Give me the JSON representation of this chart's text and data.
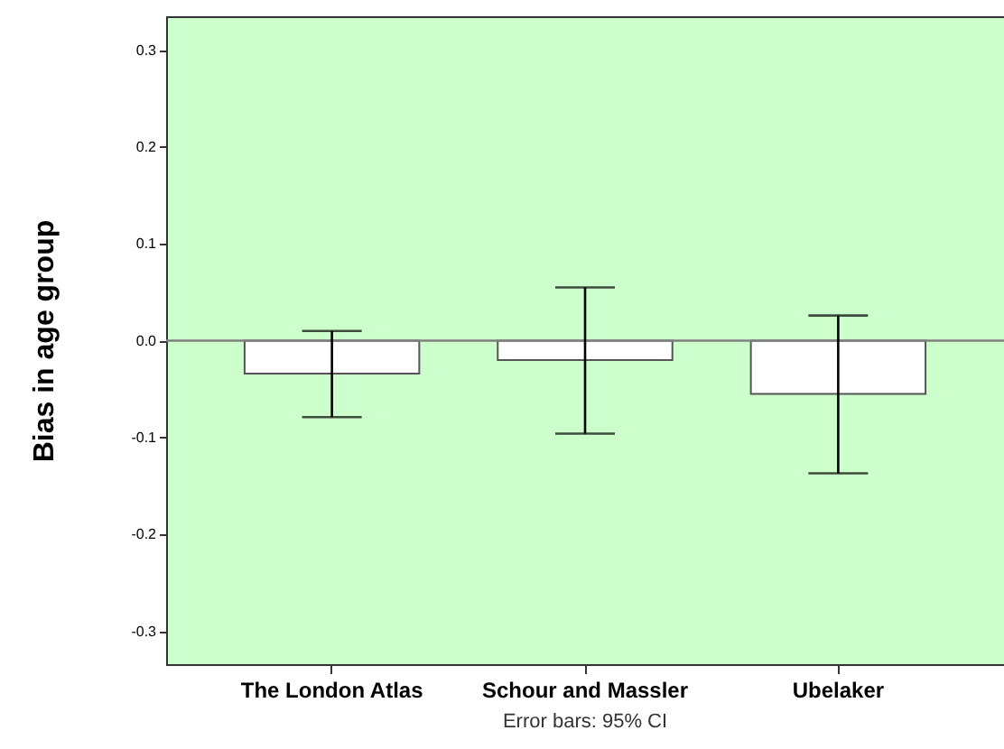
{
  "chart_data": {
    "type": "bar",
    "ylabel": "Bias in age group",
    "categories": [
      "The London Atlas",
      "Schour and Massler",
      "Ubelaker"
    ],
    "values": [
      -0.034,
      -0.02,
      -0.055
    ],
    "errors": [
      [
        -0.079,
        0.01
      ],
      [
        -0.096,
        0.055
      ],
      [
        -0.137,
        0.026
      ]
    ],
    "color": "#ffffff",
    "ylim": [
      -0.334,
      0.335
    ],
    "yticks": [
      {
        "value": -0.3,
        "label": "-0.3"
      },
      {
        "value": -0.2,
        "label": "-0.2"
      },
      {
        "value": -0.1,
        "label": "-0.1"
      },
      {
        "value": 0,
        "label": "0.0"
      },
      {
        "value": 0.1,
        "label": "0.1"
      },
      {
        "value": 0.2,
        "label": "0.2"
      },
      {
        "value": 0.3,
        "label": "0.3"
      }
    ],
    "ref_lines": [
      {
        "axis": "y",
        "value": 0,
        "color": "#808080"
      }
    ],
    "annotations": [
      "Error bars: 95% CI"
    ]
  }
}
